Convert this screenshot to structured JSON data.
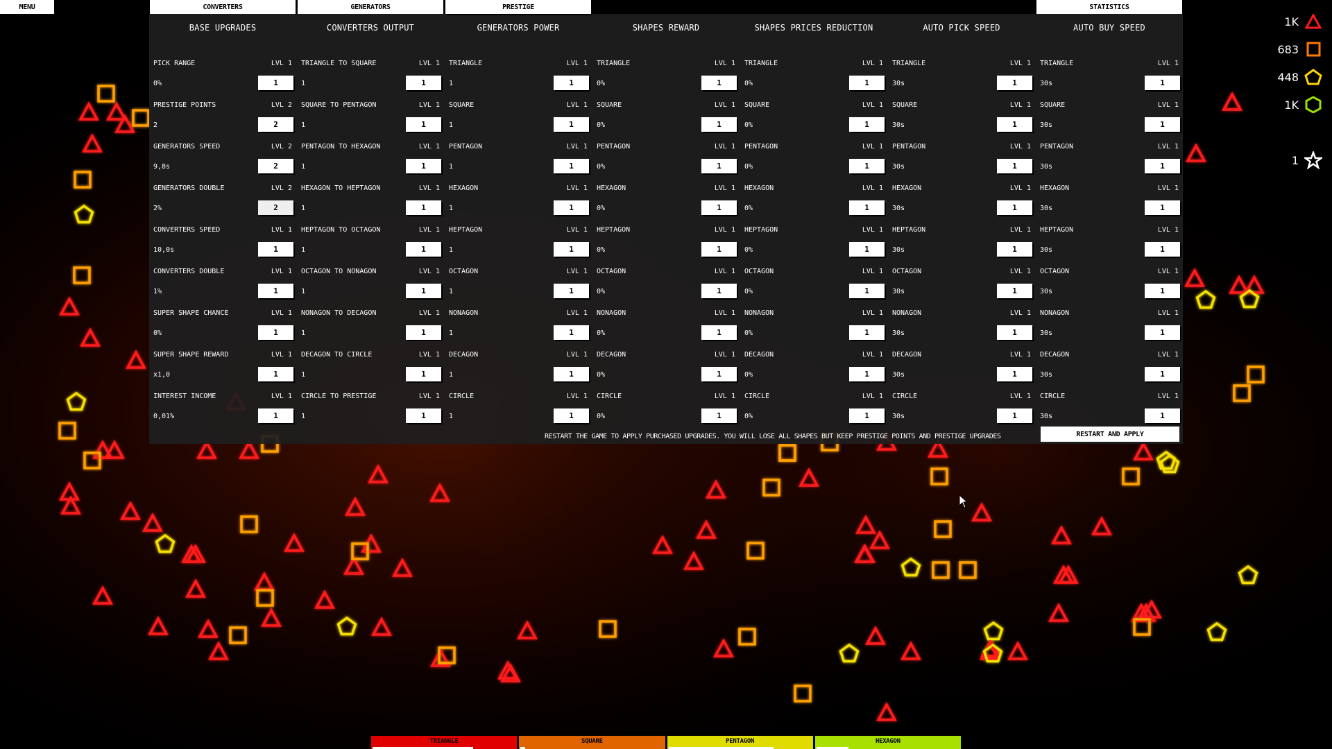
{
  "top_nav": {
    "menu": "MENU",
    "tabs": [
      "CONVERTERS",
      "GENERATORS",
      "PRESTIGE"
    ],
    "statistics": "STATISTICS"
  },
  "columns": [
    {
      "title": "BASE UPGRADES",
      "rows": [
        {
          "name": "PICK RANGE",
          "lvl": "LVL 1",
          "value": "0%",
          "buy": "1"
        },
        {
          "name": "PRESTIGE POINTS",
          "lvl": "LVL 2",
          "value": "2",
          "buy": "2"
        },
        {
          "name": "GENERATORS SPEED",
          "lvl": "LVL 2",
          "value": "9,8s",
          "buy": "2"
        },
        {
          "name": "GENERATORS DOUBLE",
          "lvl": "LVL 2",
          "value": "2%",
          "buy": "2"
        },
        {
          "name": "CONVERTERS SPEED",
          "lvl": "LVL 1",
          "value": "10,0s",
          "buy": "1"
        },
        {
          "name": "CONVERTERS DOUBLE",
          "lvl": "LVL 1",
          "value": "1%",
          "buy": "1"
        },
        {
          "name": "SUPER SHAPE CHANCE",
          "lvl": "LVL 1",
          "value": "0%",
          "buy": "1"
        },
        {
          "name": "SUPER SHAPE REWARD",
          "lvl": "LVL 1",
          "value": "x1,0",
          "buy": "1"
        },
        {
          "name": "INTEREST INCOME",
          "lvl": "LVL 1",
          "value": "0,01%",
          "buy": "1"
        }
      ]
    },
    {
      "title": "CONVERTERS OUTPUT",
      "rows": [
        {
          "name": "TRIANGLE TO SQUARE",
          "lvl": "LVL 1",
          "value": "1",
          "buy": "1"
        },
        {
          "name": "SQUARE TO PENTAGON",
          "lvl": "LVL 1",
          "value": "1",
          "buy": "1"
        },
        {
          "name": "PENTAGON TO HEXAGON",
          "lvl": "LVL 1",
          "value": "1",
          "buy": "1"
        },
        {
          "name": "HEXAGON TO HEPTAGON",
          "lvl": "LVL 1",
          "value": "1",
          "buy": "1"
        },
        {
          "name": "HEPTAGON TO OCTAGON",
          "lvl": "LVL 1",
          "value": "1",
          "buy": "1"
        },
        {
          "name": "OCTAGON TO NONAGON",
          "lvl": "LVL 1",
          "value": "1",
          "buy": "1"
        },
        {
          "name": "NONAGON TO DECAGON",
          "lvl": "LVL 1",
          "value": "1",
          "buy": "1"
        },
        {
          "name": "DECAGON TO CIRCLE",
          "lvl": "LVL 1",
          "value": "1",
          "buy": "1"
        },
        {
          "name": "CIRCLE TO PRESTIGE",
          "lvl": "LVL 1",
          "value": "1",
          "buy": "1"
        }
      ]
    },
    {
      "title": "GENERATORS POWER",
      "rows": [
        {
          "name": "TRIANGLE",
          "lvl": "LVL 1",
          "value": "1",
          "buy": "1"
        },
        {
          "name": "SQUARE",
          "lvl": "LVL 1",
          "value": "1",
          "buy": "1"
        },
        {
          "name": "PENTAGON",
          "lvl": "LVL 1",
          "value": "1",
          "buy": "1"
        },
        {
          "name": "HEXAGON",
          "lvl": "LVL 1",
          "value": "1",
          "buy": "1"
        },
        {
          "name": "HEPTAGON",
          "lvl": "LVL 1",
          "value": "1",
          "buy": "1"
        },
        {
          "name": "OCTAGON",
          "lvl": "LVL 1",
          "value": "1",
          "buy": "1"
        },
        {
          "name": "NONAGON",
          "lvl": "LVL 1",
          "value": "1",
          "buy": "1"
        },
        {
          "name": "DECAGON",
          "lvl": "LVL 1",
          "value": "1",
          "buy": "1"
        },
        {
          "name": "CIRCLE",
          "lvl": "LVL 1",
          "value": "1",
          "buy": "1"
        }
      ]
    },
    {
      "title": "SHAPES REWARD",
      "rows": [
        {
          "name": "TRIANGLE",
          "lvl": "LVL 1",
          "value": "0%",
          "buy": "1"
        },
        {
          "name": "SQUARE",
          "lvl": "LVL 1",
          "value": "0%",
          "buy": "1"
        },
        {
          "name": "PENTAGON",
          "lvl": "LVL 1",
          "value": "0%",
          "buy": "1"
        },
        {
          "name": "HEXAGON",
          "lvl": "LVL 1",
          "value": "0%",
          "buy": "1"
        },
        {
          "name": "HEPTAGON",
          "lvl": "LVL 1",
          "value": "0%",
          "buy": "1"
        },
        {
          "name": "OCTAGON",
          "lvl": "LVL 1",
          "value": "0%",
          "buy": "1"
        },
        {
          "name": "NONAGON",
          "lvl": "LVL 1",
          "value": "0%",
          "buy": "1"
        },
        {
          "name": "DECAGON",
          "lvl": "LVL 1",
          "value": "0%",
          "buy": "1"
        },
        {
          "name": "CIRCLE",
          "lvl": "LVL 1",
          "value": "0%",
          "buy": "1"
        }
      ]
    },
    {
      "title": "SHAPES PRICES REDUCTION",
      "rows": [
        {
          "name": "TRIANGLE",
          "lvl": "LVL 1",
          "value": "0%",
          "buy": "1"
        },
        {
          "name": "SQUARE",
          "lvl": "LVL 1",
          "value": "0%",
          "buy": "1"
        },
        {
          "name": "PENTAGON",
          "lvl": "LVL 1",
          "value": "0%",
          "buy": "1"
        },
        {
          "name": "HEXAGON",
          "lvl": "LVL 1",
          "value": "0%",
          "buy": "1"
        },
        {
          "name": "HEPTAGON",
          "lvl": "LVL 1",
          "value": "0%",
          "buy": "1"
        },
        {
          "name": "OCTAGON",
          "lvl": "LVL 1",
          "value": "0%",
          "buy": "1"
        },
        {
          "name": "NONAGON",
          "lvl": "LVL 1",
          "value": "0%",
          "buy": "1"
        },
        {
          "name": "DECAGON",
          "lvl": "LVL 1",
          "value": "0%",
          "buy": "1"
        },
        {
          "name": "CIRCLE",
          "lvl": "LVL 1",
          "value": "0%",
          "buy": "1"
        }
      ]
    },
    {
      "title": "AUTO PICK SPEED",
      "rows": [
        {
          "name": "TRIANGLE",
          "lvl": "LVL 1",
          "value": "30s",
          "buy": "1"
        },
        {
          "name": "SQUARE",
          "lvl": "LVL 1",
          "value": "30s",
          "buy": "1"
        },
        {
          "name": "PENTAGON",
          "lvl": "LVL 1",
          "value": "30s",
          "buy": "1"
        },
        {
          "name": "HEXAGON",
          "lvl": "LVL 1",
          "value": "30s",
          "buy": "1"
        },
        {
          "name": "HEPTAGON",
          "lvl": "LVL 1",
          "value": "30s",
          "buy": "1"
        },
        {
          "name": "OCTAGON",
          "lvl": "LVL 1",
          "value": "30s",
          "buy": "1"
        },
        {
          "name": "NONAGON",
          "lvl": "LVL 1",
          "value": "30s",
          "buy": "1"
        },
        {
          "name": "DECAGON",
          "lvl": "LVL 1",
          "value": "30s",
          "buy": "1"
        },
        {
          "name": "CIRCLE",
          "lvl": "LVL 1",
          "value": "30s",
          "buy": "1"
        }
      ]
    },
    {
      "title": "AUTO BUY SPEED",
      "rows": [
        {
          "name": "TRIANGLE",
          "lvl": "LVL 1",
          "value": "30s",
          "buy": "1"
        },
        {
          "name": "SQUARE",
          "lvl": "LVL 1",
          "value": "30s",
          "buy": "1"
        },
        {
          "name": "PENTAGON",
          "lvl": "LVL 1",
          "value": "30s",
          "buy": "1"
        },
        {
          "name": "HEXAGON",
          "lvl": "LVL 1",
          "value": "30s",
          "buy": "1"
        },
        {
          "name": "HEPTAGON",
          "lvl": "LVL 1",
          "value": "30s",
          "buy": "1"
        },
        {
          "name": "OCTAGON",
          "lvl": "LVL 1",
          "value": "30s",
          "buy": "1"
        },
        {
          "name": "NONAGON",
          "lvl": "LVL 1",
          "value": "30s",
          "buy": "1"
        },
        {
          "name": "DECAGON",
          "lvl": "LVL 1",
          "value": "30s",
          "buy": "1"
        },
        {
          "name": "CIRCLE",
          "lvl": "LVL 1",
          "value": "30s",
          "buy": "1"
        }
      ]
    }
  ],
  "footer": {
    "note": "RESTART THE GAME TO APPLY PURCHASED UPGRADES. YOU WILL LOSE ALL SHAPES BUT KEEP PRESTIGE POINTS AND PRESTIGE UPGRADES",
    "restart_button": "RESTART AND APPLY"
  },
  "resources": [
    {
      "shape": "triangle-icon",
      "count": "1K",
      "color": "#ff1a1a"
    },
    {
      "shape": "square-icon",
      "count": "683",
      "color": "#ff7a00"
    },
    {
      "shape": "pentagon-icon",
      "count": "448",
      "color": "#ffd400"
    },
    {
      "shape": "hexagon-icon",
      "count": "1K",
      "color": "#9be000"
    },
    {
      "shape": "star-icon",
      "count": "1",
      "color": "#ffffff"
    }
  ],
  "shape_bar": [
    {
      "label": "TRIANGLE",
      "color": "#e00000",
      "progress": 0.69
    },
    {
      "label": "SQUARE",
      "color": "#e06400",
      "progress": 0.03
    },
    {
      "label": "PENTAGON",
      "color": "#e0dc00",
      "progress": 0.72
    },
    {
      "label": "HEXAGON",
      "color": "#a8e000",
      "progress": 0.22
    }
  ]
}
